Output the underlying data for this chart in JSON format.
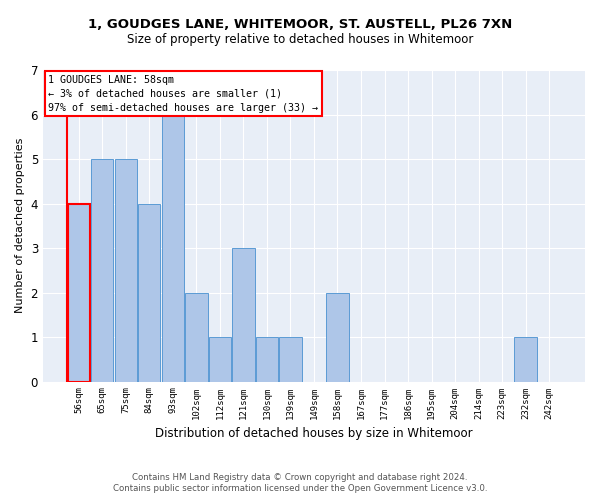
{
  "title1": "1, GOUDGES LANE, WHITEMOOR, ST. AUSTELL, PL26 7XN",
  "title2": "Size of property relative to detached houses in Whitemoor",
  "xlabel": "Distribution of detached houses by size in Whitemoor",
  "ylabel": "Number of detached properties",
  "footnote1": "Contains HM Land Registry data © Crown copyright and database right 2024.",
  "footnote2": "Contains public sector information licensed under the Open Government Licence v3.0.",
  "annotation_line1": "1 GOUDGES LANE: 58sqm",
  "annotation_line2": "← 3% of detached houses are smaller (1)",
  "annotation_line3": "97% of semi-detached houses are larger (33) →",
  "bar_labels": [
    "56sqm",
    "65sqm",
    "75sqm",
    "84sqm",
    "93sqm",
    "102sqm",
    "112sqm",
    "121sqm",
    "130sqm",
    "139sqm",
    "149sqm",
    "158sqm",
    "167sqm",
    "177sqm",
    "186sqm",
    "195sqm",
    "204sqm",
    "214sqm",
    "223sqm",
    "232sqm",
    "242sqm"
  ],
  "bar_values": [
    4,
    5,
    5,
    4,
    6,
    2,
    1,
    3,
    1,
    1,
    0,
    2,
    0,
    0,
    0,
    0,
    0,
    0,
    0,
    1,
    0
  ],
  "bar_color": "#aec6e8",
  "bar_edge_color": "#5b9bd5",
  "highlight_bar_index": 0,
  "highlight_edge_color": "#ff0000",
  "plot_bg_color": "#e8eef7",
  "ylim": [
    0,
    7
  ],
  "yticks": [
    0,
    1,
    2,
    3,
    4,
    5,
    6,
    7
  ],
  "grid_color": "#ffffff",
  "vline_color": "#ff0000"
}
